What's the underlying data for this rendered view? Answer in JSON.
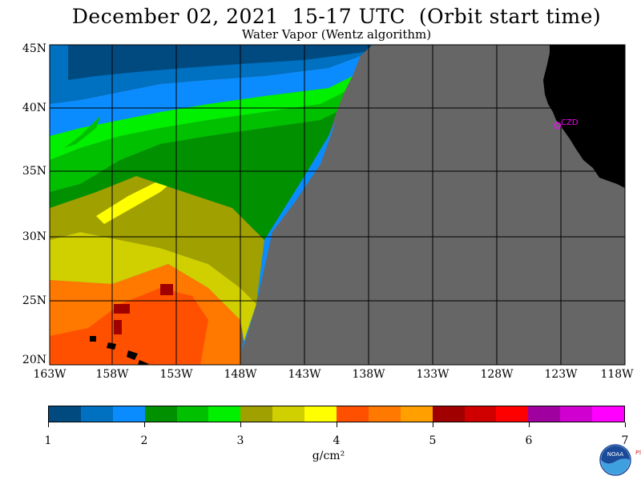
{
  "title": "December 02, 2021  15-17 UTC  (Orbit start time)",
  "subtitle": "Water Vapor (Wentz algorithm)",
  "map": {
    "lat_labels": [
      "45N",
      "40N",
      "35N",
      "30N",
      "25N",
      "20N"
    ],
    "lon_labels": [
      "163W",
      "158W",
      "153W",
      "148W",
      "143W",
      "138W",
      "133W",
      "128W",
      "123W",
      "118W"
    ],
    "station_label": "CZD",
    "station_color": "#ff00ff",
    "no_data_color": "#666666",
    "land_color": "#000000"
  },
  "colorbar": {
    "colors": [
      "#004a80",
      "#0070c0",
      "#0a8cff",
      "#009000",
      "#00c000",
      "#00f000",
      "#a0a000",
      "#d0d000",
      "#ffff00",
      "#ff5000",
      "#ff7800",
      "#ffa000",
      "#a00000",
      "#d00000",
      "#ff0000",
      "#a000a0",
      "#d000d0",
      "#ff00ff"
    ],
    "ticks": [
      "1",
      "2",
      "3",
      "4",
      "5",
      "6",
      "7"
    ],
    "units": "g/cm²"
  },
  "logo": {
    "text": "NOAA",
    "side_text": "PSL"
  }
}
